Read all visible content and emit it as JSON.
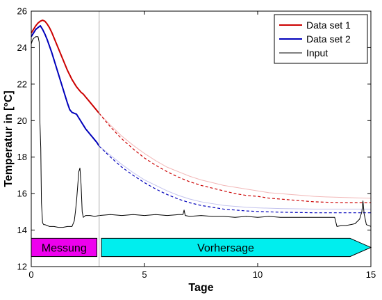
{
  "chart_data": {
    "type": "line",
    "title": "",
    "xlabel": "Tage",
    "ylabel": "Temperatur in [°C]",
    "xlim": [
      0,
      15
    ],
    "ylim": [
      12,
      26
    ],
    "xticks": [
      0,
      5,
      10,
      15
    ],
    "yticks": [
      12,
      14,
      16,
      18,
      20,
      22,
      24,
      26
    ],
    "grid": false,
    "legend_position": "top-right",
    "measurement_end_day": 3.0,
    "phases": [
      {
        "label": "Messung",
        "x0": 0.0,
        "x1": 2.9,
        "y0": 12.55,
        "y1": 13.55,
        "color": "#ee00ee",
        "shape": "rect"
      },
      {
        "label": "Vorhersage",
        "x0": 3.1,
        "x1": 15.0,
        "y0": 12.55,
        "y1": 13.55,
        "color": "#00eeee",
        "shape": "arrow"
      }
    ],
    "series": [
      {
        "name": "Data set 1",
        "color": "#cc0000",
        "measured": {
          "x": [
            0,
            0.1,
            0.2,
            0.3,
            0.4,
            0.5,
            0.6,
            0.7,
            0.8,
            0.9,
            1.0,
            1.1,
            1.2,
            1.3,
            1.4,
            1.5,
            1.6,
            1.7,
            1.8,
            1.9,
            2.0,
            2.1,
            2.2,
            2.3,
            2.4,
            2.5,
            2.6,
            2.7,
            2.8,
            2.9,
            3.0
          ],
          "y": [
            24.8,
            25.0,
            25.2,
            25.35,
            25.45,
            25.5,
            25.45,
            25.3,
            25.1,
            24.85,
            24.55,
            24.25,
            23.95,
            23.65,
            23.35,
            23.05,
            22.75,
            22.5,
            22.25,
            22.05,
            21.85,
            21.7,
            21.55,
            21.45,
            21.3,
            21.15,
            21.0,
            20.85,
            20.7,
            20.55,
            20.4
          ]
        },
        "forecast": {
          "x": [
            3.0,
            3.5,
            4.0,
            4.5,
            5.0,
            5.5,
            6.0,
            6.5,
            7.0,
            7.5,
            8.0,
            8.5,
            9.0,
            9.5,
            10.0,
            10.5,
            11.0,
            11.5,
            12.0,
            12.5,
            13.0,
            13.5,
            14.0,
            14.5,
            15.0
          ],
          "y": [
            20.4,
            19.65,
            19.0,
            18.45,
            17.95,
            17.55,
            17.2,
            16.9,
            16.65,
            16.45,
            16.3,
            16.15,
            16.0,
            15.9,
            15.85,
            15.75,
            15.7,
            15.65,
            15.6,
            15.55,
            15.53,
            15.51,
            15.5,
            15.5,
            15.5
          ]
        },
        "forecast_band": {
          "x": [
            3.0,
            3.5,
            4.0,
            4.5,
            5.0,
            5.5,
            6.0,
            6.5,
            7.0,
            7.5,
            8.0,
            8.5,
            9.0,
            9.5,
            10.0,
            10.5,
            11.0,
            11.5,
            12.0,
            12.5,
            13.0,
            13.5,
            14.0,
            14.5,
            15.0
          ],
          "y": [
            20.4,
            19.75,
            19.15,
            18.65,
            18.2,
            17.8,
            17.45,
            17.2,
            16.95,
            16.75,
            16.6,
            16.45,
            16.35,
            16.25,
            16.15,
            16.05,
            16.0,
            15.95,
            15.9,
            15.85,
            15.82,
            15.8,
            15.78,
            15.76,
            15.75
          ]
        }
      },
      {
        "name": "Data set 2",
        "color": "#0000bb",
        "measured": {
          "x": [
            0,
            0.1,
            0.2,
            0.3,
            0.4,
            0.5,
            0.6,
            0.7,
            0.8,
            0.9,
            1.0,
            1.1,
            1.2,
            1.3,
            1.4,
            1.5,
            1.6,
            1.7,
            1.8,
            1.9,
            2.0,
            2.1,
            2.2,
            2.3,
            2.4,
            2.5,
            2.6,
            2.7,
            2.8,
            2.9,
            3.0
          ],
          "y": [
            24.6,
            24.8,
            25.0,
            25.1,
            25.2,
            25.0,
            24.75,
            24.45,
            24.1,
            23.75,
            23.35,
            22.95,
            22.55,
            22.15,
            21.75,
            21.35,
            20.95,
            20.6,
            20.45,
            20.4,
            20.35,
            20.15,
            19.95,
            19.75,
            19.55,
            19.4,
            19.25,
            19.1,
            18.95,
            18.8,
            18.6
          ]
        },
        "forecast": {
          "x": [
            3.0,
            3.5,
            4.0,
            4.5,
            5.0,
            5.5,
            6.0,
            6.5,
            7.0,
            7.5,
            8.0,
            8.5,
            9.0,
            9.5,
            10.0,
            10.5,
            11.0,
            11.5,
            12.0,
            12.5,
            13.0,
            13.5,
            14.0,
            14.5,
            15.0
          ],
          "y": [
            18.6,
            18.0,
            17.45,
            17.0,
            16.6,
            16.25,
            15.95,
            15.7,
            15.5,
            15.35,
            15.25,
            15.15,
            15.1,
            15.05,
            15.02,
            15.0,
            14.98,
            14.97,
            14.96,
            14.95,
            14.95,
            14.95,
            14.95,
            14.95,
            14.95
          ]
        },
        "forecast_band": {
          "x": [
            3.0,
            3.5,
            4.0,
            4.5,
            5.0,
            5.5,
            6.0,
            6.5,
            7.0,
            7.5,
            8.0,
            8.5,
            9.0,
            9.5,
            10.0,
            10.5,
            11.0,
            11.5,
            12.0,
            12.5,
            13.0,
            13.5,
            14.0,
            14.5,
            15.0
          ],
          "y": [
            18.6,
            18.1,
            17.6,
            17.15,
            16.75,
            16.45,
            16.15,
            15.9,
            15.7,
            15.55,
            15.45,
            15.35,
            15.3,
            15.25,
            15.22,
            15.2,
            15.18,
            15.17,
            15.16,
            15.15,
            15.15,
            15.15,
            15.15,
            15.15,
            15.15
          ]
        }
      },
      {
        "name": "Input",
        "color": "#000000",
        "x": [
          0,
          0.05,
          0.1,
          0.15,
          0.2,
          0.25,
          0.3,
          0.35,
          0.38,
          0.42,
          0.45,
          0.5,
          0.55,
          0.6,
          0.7,
          0.8,
          1.0,
          1.2,
          1.4,
          1.6,
          1.8,
          1.9,
          1.95,
          2.0,
          2.05,
          2.1,
          2.15,
          2.2,
          2.25,
          2.3,
          2.4,
          2.6,
          2.8,
          3.0,
          3.5,
          4.0,
          4.5,
          5.0,
          5.5,
          6.0,
          6.5,
          6.7,
          6.75,
          6.8,
          7.0,
          7.5,
          8.0,
          8.5,
          9.0,
          9.5,
          10.0,
          10.5,
          11.0,
          11.5,
          12.0,
          12.5,
          13.0,
          13.4,
          13.5,
          13.7,
          13.9,
          14.1,
          14.3,
          14.5,
          14.6,
          14.65,
          14.7,
          14.8,
          15.0
        ],
        "y": [
          24.2,
          24.4,
          24.5,
          24.55,
          24.6,
          24.6,
          24.6,
          24.3,
          20.0,
          18.5,
          15.5,
          14.4,
          14.3,
          14.3,
          14.25,
          14.2,
          14.2,
          14.15,
          14.15,
          14.2,
          14.2,
          14.5,
          15.0,
          15.6,
          16.4,
          17.2,
          17.4,
          16.5,
          15.0,
          14.7,
          14.8,
          14.8,
          14.75,
          14.8,
          14.85,
          14.8,
          14.85,
          14.8,
          14.85,
          14.8,
          14.85,
          14.85,
          15.1,
          14.8,
          14.75,
          14.8,
          14.75,
          14.75,
          14.7,
          14.75,
          14.7,
          14.75,
          14.7,
          14.7,
          14.7,
          14.7,
          14.7,
          14.7,
          14.2,
          14.25,
          14.25,
          14.3,
          14.35,
          14.6,
          15.0,
          15.6,
          14.9,
          14.3,
          14.2
        ]
      }
    ]
  }
}
